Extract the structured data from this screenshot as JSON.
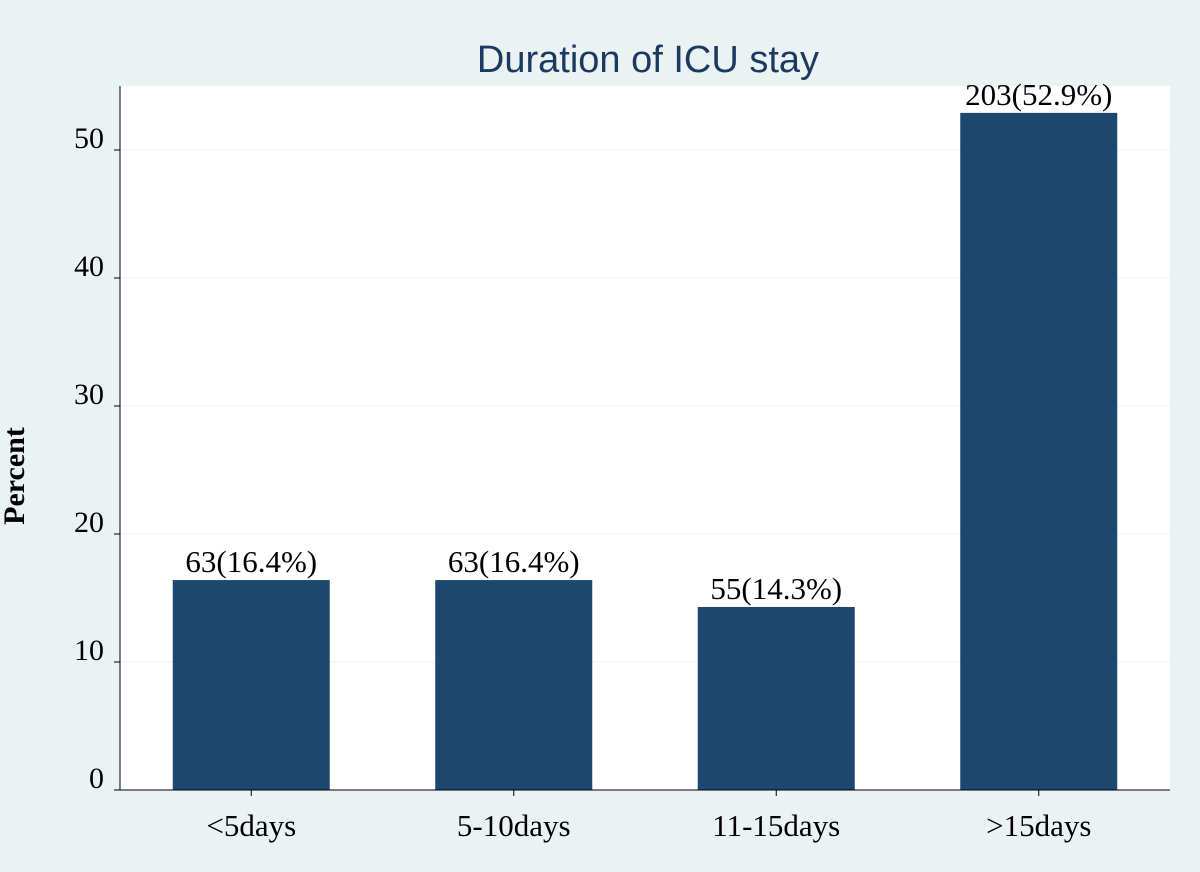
{
  "chart_data": {
    "type": "bar",
    "title": "Duration of ICU stay",
    "xlabel": "",
    "ylabel": "Percent",
    "categories": [
      "<5days",
      "5-10days",
      "11-15days",
      ">15days"
    ],
    "values": [
      16.4,
      16.4,
      14.3,
      52.9
    ],
    "data_labels": [
      "63(16.4%)",
      "63(16.4%)",
      "55(14.3%)",
      "203(52.9%)"
    ],
    "yticks": [
      0,
      10,
      20,
      30,
      40,
      50
    ],
    "ytick_labels": [
      "0",
      "10",
      "20",
      "30",
      "40",
      "50"
    ],
    "ylim": [
      0,
      55
    ],
    "grid": true,
    "legend": "none"
  },
  "colors": {
    "bar": "#1c476e",
    "page_background": "#eaf2f3",
    "plot_background": "#ffffff",
    "title": "#1c3a5f",
    "grid": "#eaf2f3",
    "axis": "#000000"
  }
}
